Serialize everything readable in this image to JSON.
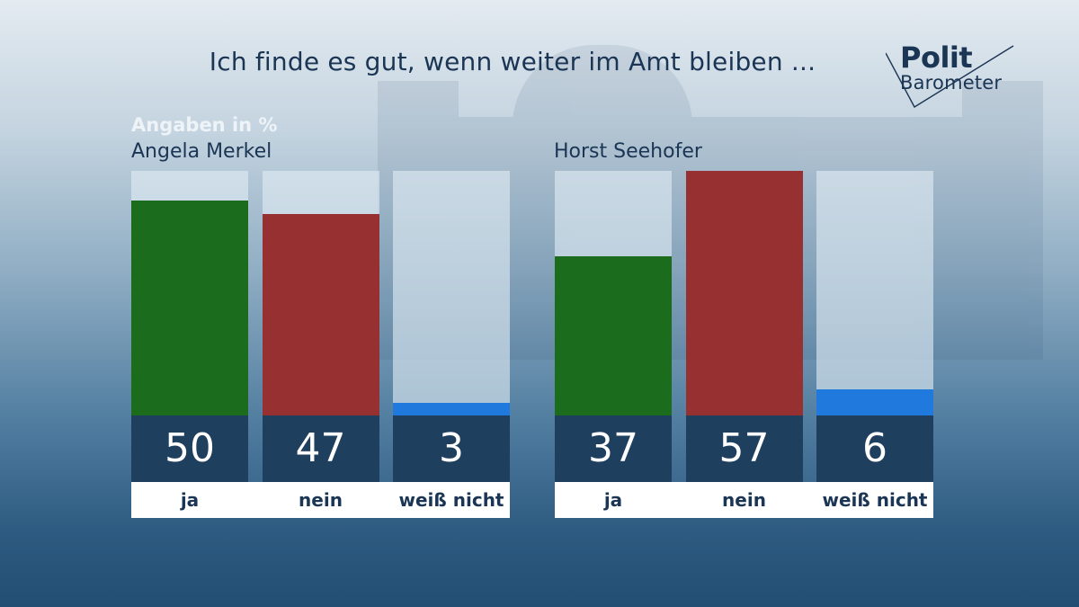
{
  "title": "Ich finde es gut, wenn weiter im Amt bleiben ...",
  "unit_label": "Angaben in %",
  "logo": {
    "line1": "Polit",
    "line2": "Barometer"
  },
  "colors": {
    "ja": "#1c6c1e",
    "nein": "#973031",
    "weiss_nicht": "#2079dd"
  },
  "chart_data": [
    {
      "type": "bar",
      "title": "Angela Merkel",
      "categories": [
        "ja",
        "nein",
        "weiß nicht"
      ],
      "values": [
        50,
        47,
        3
      ],
      "ylim": [
        0,
        57
      ]
    },
    {
      "type": "bar",
      "title": "Horst Seehofer",
      "categories": [
        "ja",
        "nein",
        "weiß nicht"
      ],
      "values": [
        37,
        57,
        6
      ],
      "ylim": [
        0,
        57
      ]
    }
  ]
}
